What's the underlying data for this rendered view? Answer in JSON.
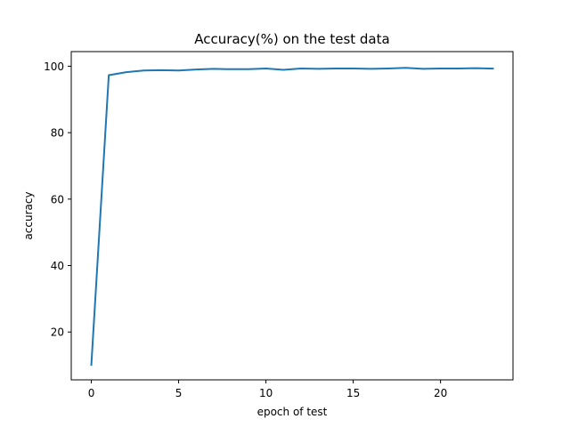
{
  "chart_data": {
    "type": "line",
    "title": "Accuracy(%) on the test data",
    "xlabel": "epoch of test",
    "ylabel": "accuracy",
    "xlim": [
      -1.15,
      24.15
    ],
    "ylim": [
      5.6,
      104.4
    ],
    "xticks": [
      0,
      5,
      10,
      15,
      20
    ],
    "yticks": [
      20,
      40,
      60,
      80,
      100
    ],
    "grid": false,
    "colors": {
      "line": "#1f77b4",
      "axes": "#000000",
      "background": "#ffffff"
    },
    "series": [
      {
        "x": [
          0,
          1,
          2,
          3,
          4,
          5,
          6,
          7,
          8,
          9,
          10,
          11,
          12,
          13,
          14,
          15,
          16,
          17,
          18,
          19,
          20,
          21,
          22,
          23
        ],
        "y": [
          10.1,
          97.3,
          98.2,
          98.7,
          98.8,
          98.7,
          99.0,
          99.2,
          99.1,
          99.1,
          99.3,
          98.9,
          99.3,
          99.2,
          99.3,
          99.3,
          99.2,
          99.3,
          99.5,
          99.2,
          99.3,
          99.3,
          99.4,
          99.3
        ]
      }
    ]
  }
}
